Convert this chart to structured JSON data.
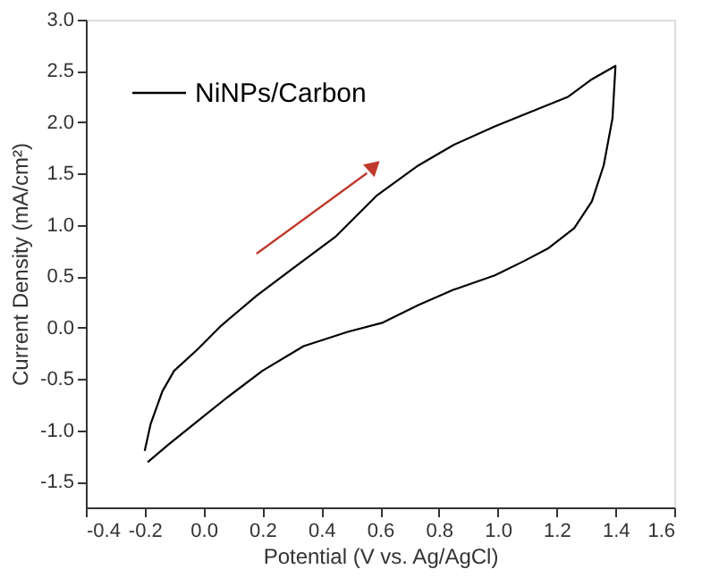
{
  "chart_data": {
    "type": "line",
    "xlabel": "Potential (V vs. Ag/AgCl)",
    "ylabel": "Current Density (mA/cm²)",
    "xlim": [
      -0.4,
      1.6
    ],
    "xticks": [
      -0.4,
      -0.2,
      {
        "value": 0,
        "label": "0.0"
      },
      0.2,
      0.4,
      0.6,
      0.8,
      {
        "value": 1,
        "label": "1.0"
      },
      1.2,
      1.4,
      1.6
    ],
    "ylim": [
      -1.75,
      3.0
    ],
    "yticks": [
      -1.5,
      {
        "value": -1,
        "label": "-1.0"
      },
      -0.5,
      {
        "value": 0,
        "label": "0.0"
      },
      0.5,
      {
        "value": 1,
        "label": "1.0"
      },
      1.5,
      {
        "value": 2,
        "label": "2.0"
      },
      2.5,
      {
        "value": 3,
        "label": "3.0"
      }
    ],
    "grid": false,
    "legend": "top left",
    "marker": "none",
    "line_style": "solid",
    "series": [
      {
        "name": "NiNPs/Carbon",
        "color": "#000000",
        "x": [
          -0.2,
          -0.18,
          -0.14,
          -0.1,
          -0.02,
          0.06,
          0.18,
          0.3,
          0.45,
          0.59,
          0.73,
          0.85,
          0.99,
          1.11,
          1.24,
          1.32,
          1.4,
          1.4,
          1.39,
          1.36,
          1.32,
          1.26,
          1.17,
          1.09,
          0.99,
          0.85,
          0.73,
          0.61,
          0.49,
          0.34,
          0.2,
          0.08,
          -0.02,
          -0.12,
          -0.19
        ],
        "values": [
          -1.2,
          -0.94,
          -0.62,
          -0.42,
          -0.21,
          0.02,
          0.31,
          0.57,
          0.89,
          1.29,
          1.58,
          1.78,
          1.96,
          2.1,
          2.25,
          2.42,
          2.55,
          2.54,
          2.04,
          1.58,
          1.23,
          0.97,
          0.77,
          0.65,
          0.51,
          0.37,
          0.22,
          0.05,
          -0.04,
          -0.18,
          -0.42,
          -0.68,
          -0.91,
          -1.14,
          -1.31
        ]
      }
    ]
  }
}
